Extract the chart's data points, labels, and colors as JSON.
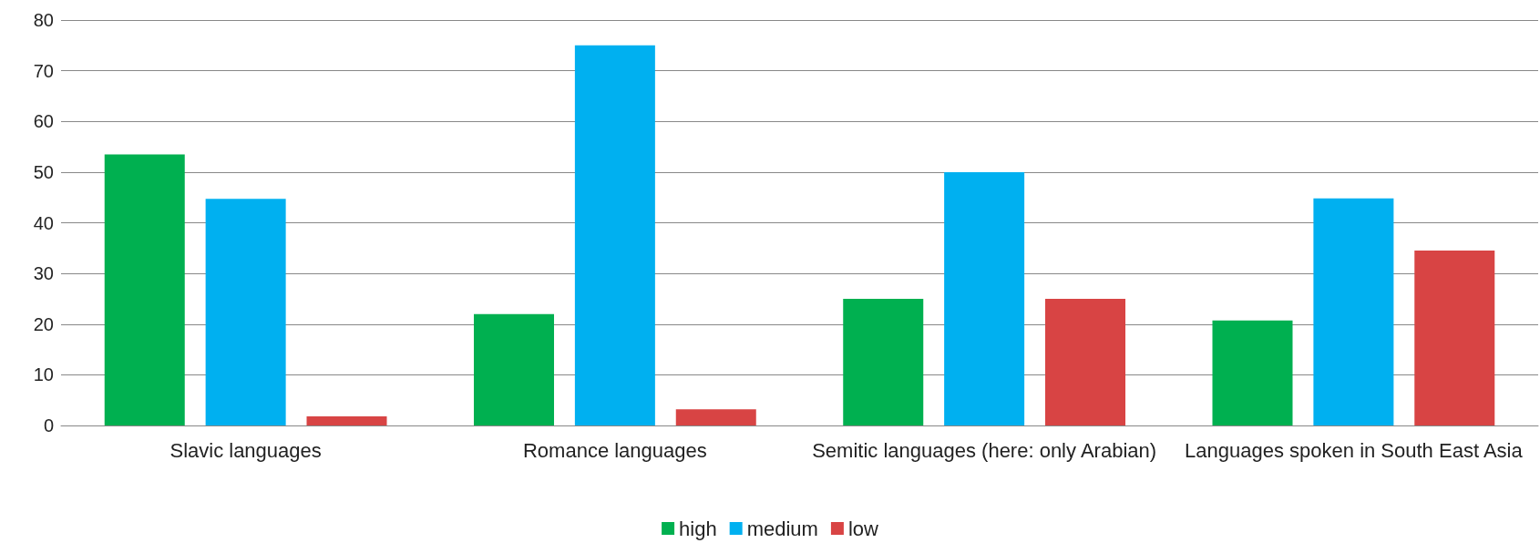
{
  "chart_data": {
    "type": "bar",
    "categories": [
      "Slavic languages",
      "Romance languages",
      "Semitic languages (here: only Arabian)",
      "Languages spoken in South East Asia"
    ],
    "series": [
      {
        "name": "high",
        "color": "#00b050",
        "values": [
          53.5,
          22,
          25,
          20.7
        ]
      },
      {
        "name": "medium",
        "color": "#00b0f0",
        "values": [
          44.7,
          75,
          50,
          44.8
        ]
      },
      {
        "name": "low",
        "color": "#d84444",
        "values": [
          1.8,
          3.2,
          25,
          34.5
        ]
      }
    ],
    "ylim": [
      0,
      80
    ],
    "yticks": [
      0,
      10,
      20,
      30,
      40,
      50,
      60,
      70,
      80
    ],
    "grid": "y",
    "legend": "bottom"
  }
}
